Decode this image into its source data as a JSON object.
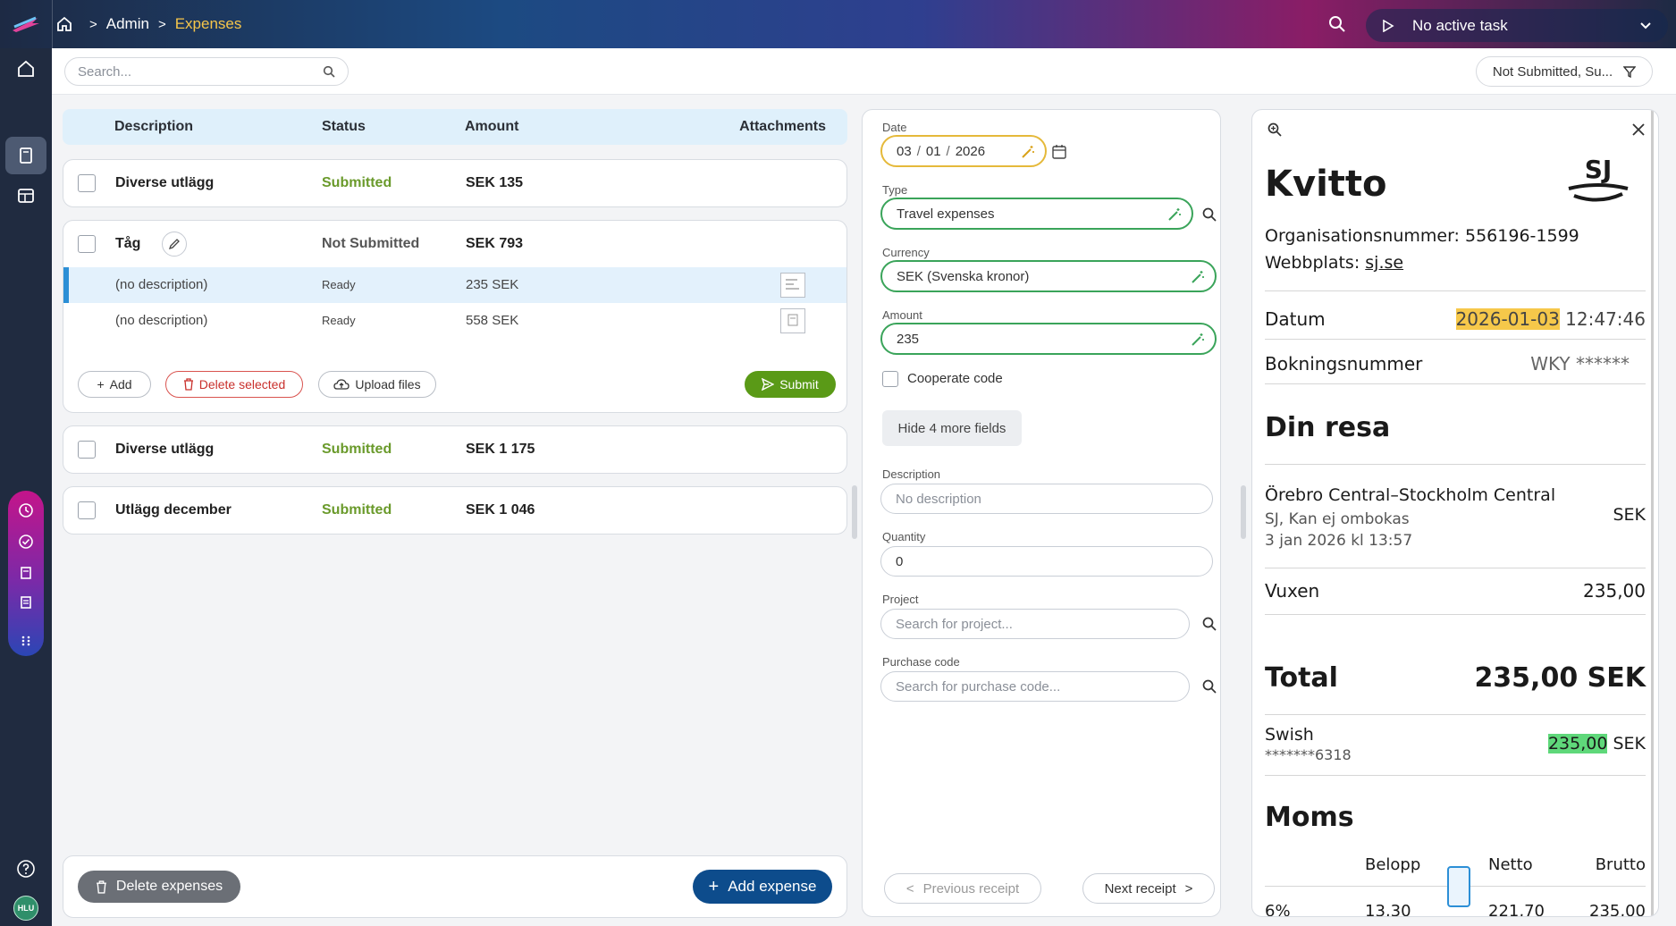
{
  "topbar": {
    "breadcrumb": [
      "Admin",
      "Expenses"
    ],
    "task_label": "No active task"
  },
  "toolbar": {
    "search_placeholder": "Search...",
    "filter_label": "Not Submitted, Su..."
  },
  "user": {
    "initials": "HLU"
  },
  "list": {
    "columns": {
      "description": "Description",
      "status": "Status",
      "amount": "Amount",
      "attachments": "Attachments"
    },
    "groups": [
      {
        "description": "Diverse utlägg",
        "status": "Submitted",
        "amount": "SEK 135"
      },
      {
        "description": "Tåg",
        "status": "Not Submitted",
        "amount": "SEK 793",
        "items": [
          {
            "description": "(no description)",
            "status": "Ready",
            "amount": "235 SEK"
          },
          {
            "description": "(no description)",
            "status": "Ready",
            "amount": "558 SEK"
          }
        ],
        "actions": {
          "add": "Add",
          "delete_selected": "Delete selected",
          "upload": "Upload files",
          "submit": "Submit"
        }
      },
      {
        "description": "Diverse utlägg",
        "status": "Submitted",
        "amount": "SEK 1 175"
      },
      {
        "description": "Utlägg december",
        "status": "Submitted",
        "amount": "SEK 1 046"
      }
    ],
    "delete_expenses": "Delete expenses",
    "add_expense": "Add expense"
  },
  "form": {
    "date_label": "Date",
    "date_day": "03",
    "date_month": "01",
    "date_year": "2026",
    "type_label": "Type",
    "type_value": "Travel expenses",
    "currency_label": "Currency",
    "currency_value": "SEK (Svenska kronor)",
    "amount_label": "Amount",
    "amount_value": "235",
    "cooperate_label": "Cooperate code",
    "hide_fields": "Hide 4 more fields",
    "description_label": "Description",
    "description_placeholder": "No description",
    "quantity_label": "Quantity",
    "quantity_value": "0",
    "project_label": "Project",
    "project_placeholder": "Search for project...",
    "purchase_label": "Purchase code",
    "purchase_placeholder": "Search for purchase code...",
    "prev": "Previous receipt",
    "next": "Next receipt"
  },
  "receipt": {
    "title": "Kvitto",
    "org": "Organisationsnummer: 556196-1599",
    "web_prefix": "Webbplats: ",
    "web_link": "sj.se",
    "datum_label": "Datum",
    "datum_date": "2026-01-03",
    "datum_time": " 12:47:46",
    "bokning_label": "Bokningsnummer",
    "bokning_value": "WKY ******",
    "resa_title": "Din resa",
    "route": "Örebro Central–Stockholm Central",
    "route_currency": "SEK",
    "route_sub1": "SJ, Kan ej ombokas",
    "route_sub2": "3 jan 2026 kl 13:57",
    "vuxen_label": "Vuxen",
    "vuxen_value": "235,00",
    "total_label": "Total",
    "total_value": "235,00 SEK",
    "swish_label": "Swish",
    "swish_number": "*******6318",
    "swish_amount": "235,00",
    "swish_currency": " SEK",
    "moms_title": "Moms",
    "moms_cols": [
      "Belopp",
      "Netto",
      "Brutto"
    ],
    "moms_row": [
      "6%",
      "13,30",
      "221,70",
      "235,00"
    ],
    "logo_text": "SJ"
  }
}
